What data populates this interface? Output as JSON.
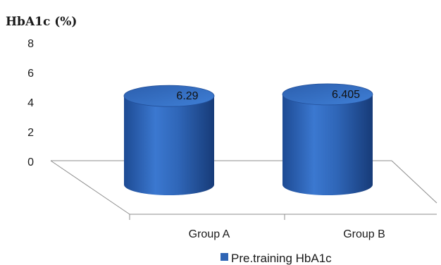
{
  "chart_data": {
    "type": "bar",
    "shape": "3d-cylinder",
    "ylabel": "HbA1c (%)",
    "categories": [
      "Group A",
      "Group B"
    ],
    "series": [
      {
        "name": "Pre.training HbA1c",
        "values": [
          6.29,
          6.405
        ],
        "value_labels": [
          "6.29",
          "6.405"
        ]
      }
    ],
    "yticks": [
      "0",
      "2",
      "4",
      "6",
      "8"
    ],
    "ylim": [
      0,
      8
    ],
    "grid": false,
    "legend_position": "bottom",
    "colors": {
      "bar": "#2e64b4",
      "bar_light": "#3f7fd6",
      "bar_dark": "#1a3f7e",
      "axis": "#8c8c8c"
    }
  }
}
